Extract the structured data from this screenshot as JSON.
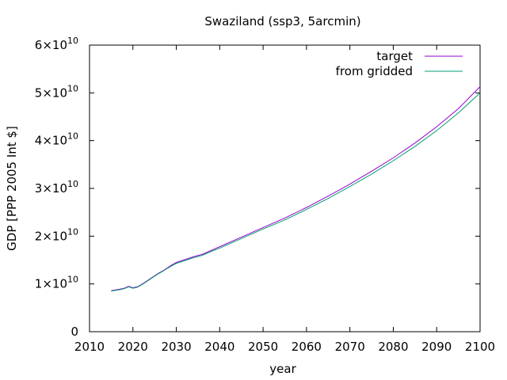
{
  "chart_data": {
    "type": "line",
    "title": "Swaziland (ssp3, 5arcmin)",
    "xlabel": "year",
    "ylabel": "GDP [PPP 2005 Int $]",
    "xlim": [
      2010,
      2100
    ],
    "ylim": [
      0,
      60000000000
    ],
    "x_ticks": [
      2010,
      2020,
      2030,
      2040,
      2050,
      2060,
      2070,
      2080,
      2090,
      2100
    ],
    "y_ticks": [
      {
        "value": 0,
        "mantissa": "0",
        "exponent": ""
      },
      {
        "value": 10000000000,
        "mantissa": "1×10",
        "exponent": "10"
      },
      {
        "value": 20000000000,
        "mantissa": "2×10",
        "exponent": "10"
      },
      {
        "value": 30000000000,
        "mantissa": "3×10",
        "exponent": "10"
      },
      {
        "value": 40000000000,
        "mantissa": "4×10",
        "exponent": "10"
      },
      {
        "value": 50000000000,
        "mantissa": "5×10",
        "exponent": "10"
      },
      {
        "value": 60000000000,
        "mantissa": "6×10",
        "exponent": "10"
      }
    ],
    "grid": false,
    "legend_position": "top-right",
    "series": [
      {
        "name": "target",
        "color": "#9400d3",
        "x": [
          2015,
          2016,
          2017,
          2018,
          2019,
          2020,
          2021,
          2022,
          2023,
          2024,
          2025,
          2026,
          2027,
          2028,
          2029,
          2030,
          2032,
          2034,
          2036,
          2038,
          2040,
          2045,
          2050,
          2055,
          2060,
          2065,
          2070,
          2075,
          2080,
          2085,
          2090,
          2095,
          2100
        ],
        "y": [
          8600000000,
          8750000000,
          8900000000,
          9100000000,
          9500000000,
          9200000000,
          9400000000,
          9900000000,
          10500000000,
          11100000000,
          11700000000,
          12300000000,
          12800000000,
          13400000000,
          14000000000,
          14500000000,
          15100000000,
          15700000000,
          16200000000,
          17000000000,
          17800000000,
          19800000000,
          21800000000,
          23800000000,
          26000000000,
          28400000000,
          30900000000,
          33600000000,
          36400000000,
          39500000000,
          42900000000,
          46700000000,
          51300000000
        ]
      },
      {
        "name": "from gridded",
        "color": "#009e73",
        "x": [
          2015,
          2016,
          2017,
          2018,
          2019,
          2020,
          2021,
          2022,
          2023,
          2024,
          2025,
          2026,
          2027,
          2028,
          2029,
          2030,
          2032,
          2034,
          2036,
          2038,
          2040,
          2045,
          2050,
          2055,
          2060,
          2065,
          2070,
          2075,
          2080,
          2085,
          2090,
          2095,
          2100
        ],
        "y": [
          8500000000,
          8650000000,
          8800000000,
          9000000000,
          9400000000,
          9100000000,
          9300000000,
          9800000000,
          10400000000,
          11000000000,
          11600000000,
          12200000000,
          12700000000,
          13300000000,
          13800000000,
          14300000000,
          14900000000,
          15500000000,
          16000000000,
          16800000000,
          17500000000,
          19500000000,
          21500000000,
          23400000000,
          25600000000,
          27900000000,
          30400000000,
          33000000000,
          35800000000,
          38800000000,
          42100000000,
          45800000000,
          50000000000
        ]
      }
    ]
  }
}
